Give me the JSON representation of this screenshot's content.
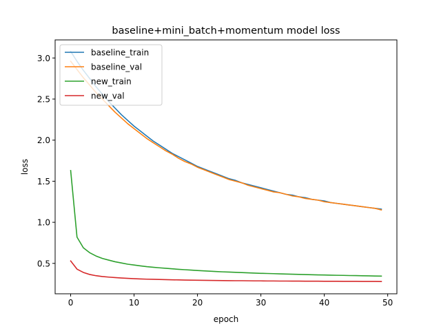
{
  "chart_data": {
    "type": "line",
    "title": "baseline+mini_batch+momentum model loss",
    "xlabel": "epoch",
    "ylabel": "loss",
    "xlim": [
      -2.45,
      51.45
    ],
    "ylim": [
      0.13,
      3.22
    ],
    "xticks": [
      0,
      10,
      20,
      30,
      40,
      50
    ],
    "yticks": [
      0.5,
      1.0,
      1.5,
      2.0,
      2.5,
      3.0
    ],
    "xtick_labels": [
      "0",
      "10",
      "20",
      "30",
      "40",
      "50"
    ],
    "ytick_labels": [
      "0.5",
      "1.0",
      "1.5",
      "2.0",
      "2.5",
      "3.0"
    ],
    "grid": false,
    "legend_position": "top-left",
    "series": [
      {
        "name": "baseline_train",
        "color": "#1f77b4",
        "x": [
          0,
          1,
          2,
          3,
          4,
          5,
          6,
          7,
          8,
          9,
          10,
          11,
          12,
          13,
          14,
          15,
          16,
          17,
          18,
          19,
          20,
          21,
          22,
          23,
          24,
          25,
          26,
          27,
          28,
          29,
          30,
          31,
          32,
          33,
          34,
          35,
          36,
          37,
          38,
          39,
          40,
          41,
          42,
          43,
          44,
          45,
          46,
          47,
          48,
          49
        ],
        "values": [
          3.08,
          2.96,
          2.85,
          2.75,
          2.65,
          2.56,
          2.47,
          2.39,
          2.31,
          2.24,
          2.17,
          2.11,
          2.05,
          1.99,
          1.94,
          1.89,
          1.84,
          1.8,
          1.76,
          1.72,
          1.68,
          1.65,
          1.62,
          1.59,
          1.56,
          1.53,
          1.51,
          1.48,
          1.46,
          1.44,
          1.42,
          1.4,
          1.38,
          1.36,
          1.34,
          1.33,
          1.31,
          1.3,
          1.28,
          1.27,
          1.26,
          1.24,
          1.23,
          1.22,
          1.21,
          1.2,
          1.19,
          1.18,
          1.17,
          1.16
        ]
      },
      {
        "name": "baseline_val",
        "color": "#ff7f0e",
        "x": [
          0,
          1,
          2,
          3,
          4,
          5,
          6,
          7,
          8,
          9,
          10,
          11,
          12,
          13,
          14,
          15,
          16,
          17,
          18,
          19,
          20,
          21,
          22,
          23,
          24,
          25,
          26,
          27,
          28,
          29,
          30,
          31,
          32,
          33,
          34,
          35,
          36,
          37,
          38,
          39,
          40,
          41,
          42,
          43,
          44,
          45,
          46,
          47,
          48,
          49
        ],
        "values": [
          2.96,
          2.86,
          2.76,
          2.67,
          2.58,
          2.5,
          2.42,
          2.34,
          2.27,
          2.2,
          2.14,
          2.08,
          2.02,
          1.97,
          1.92,
          1.87,
          1.83,
          1.78,
          1.74,
          1.71,
          1.67,
          1.64,
          1.61,
          1.58,
          1.55,
          1.52,
          1.5,
          1.48,
          1.45,
          1.43,
          1.41,
          1.39,
          1.37,
          1.36,
          1.34,
          1.32,
          1.31,
          1.29,
          1.28,
          1.27,
          1.25,
          1.24,
          1.23,
          1.22,
          1.21,
          1.2,
          1.19,
          1.18,
          1.17,
          1.15
        ]
      },
      {
        "name": "new_train",
        "color": "#2ca02c",
        "x": [
          0,
          1,
          2,
          3,
          4,
          5,
          6,
          7,
          8,
          9,
          10,
          11,
          12,
          13,
          14,
          15,
          16,
          17,
          18,
          19,
          20,
          21,
          22,
          23,
          24,
          25,
          26,
          27,
          28,
          29,
          30,
          31,
          32,
          33,
          34,
          35,
          36,
          37,
          38,
          39,
          40,
          41,
          42,
          43,
          44,
          45,
          46,
          47,
          48,
          49
        ],
        "values": [
          1.63,
          0.82,
          0.69,
          0.63,
          0.59,
          0.56,
          0.54,
          0.52,
          0.505,
          0.49,
          0.48,
          0.47,
          0.46,
          0.453,
          0.446,
          0.44,
          0.434,
          0.428,
          0.423,
          0.418,
          0.413,
          0.409,
          0.405,
          0.401,
          0.397,
          0.394,
          0.391,
          0.388,
          0.385,
          0.382,
          0.379,
          0.377,
          0.375,
          0.372,
          0.37,
          0.368,
          0.366,
          0.364,
          0.362,
          0.36,
          0.359,
          0.357,
          0.355,
          0.354,
          0.352,
          0.351,
          0.349,
          0.348,
          0.346,
          0.345
        ]
      },
      {
        "name": "new_val",
        "color": "#d62728",
        "x": [
          0,
          1,
          2,
          3,
          4,
          5,
          6,
          7,
          8,
          9,
          10,
          11,
          12,
          13,
          14,
          15,
          16,
          17,
          18,
          19,
          20,
          21,
          22,
          23,
          24,
          25,
          26,
          27,
          28,
          29,
          30,
          31,
          32,
          33,
          34,
          35,
          36,
          37,
          38,
          39,
          40,
          41,
          42,
          43,
          44,
          45,
          46,
          47,
          48,
          49
        ],
        "values": [
          0.53,
          0.43,
          0.39,
          0.365,
          0.35,
          0.34,
          0.333,
          0.327,
          0.322,
          0.318,
          0.314,
          0.311,
          0.308,
          0.306,
          0.304,
          0.302,
          0.3,
          0.299,
          0.297,
          0.296,
          0.295,
          0.294,
          0.293,
          0.292,
          0.291,
          0.29,
          0.289,
          0.289,
          0.288,
          0.287,
          0.287,
          0.286,
          0.286,
          0.285,
          0.285,
          0.284,
          0.284,
          0.283,
          0.283,
          0.283,
          0.282,
          0.282,
          0.282,
          0.281,
          0.281,
          0.281,
          0.28,
          0.28,
          0.28,
          0.279
        ]
      }
    ]
  }
}
